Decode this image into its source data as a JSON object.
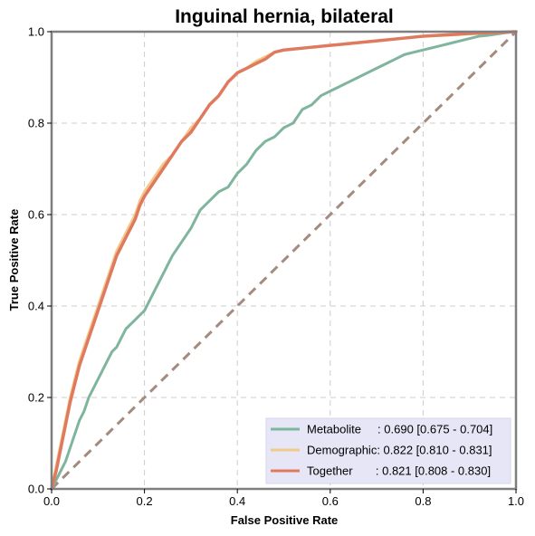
{
  "chart_data": {
    "type": "line",
    "title": "Inguinal hernia, bilateral",
    "xlabel": "False Positive Rate",
    "ylabel": "True Positive Rate",
    "xlim": [
      0,
      1
    ],
    "ylim": [
      0,
      1
    ],
    "x_ticks": [
      "0.0",
      "0.2",
      "0.4",
      "0.6",
      "0.8",
      "1.0"
    ],
    "y_ticks": [
      "0.0",
      "0.2",
      "0.4",
      "0.6",
      "0.8",
      "1.0"
    ],
    "grid": true,
    "legend_position": "bottom-right",
    "chance_line": {
      "x": [
        0,
        1
      ],
      "y": [
        0,
        1
      ],
      "color": "#a38b7d"
    },
    "series": [
      {
        "name": "Metabolite",
        "legend_label": "Metabolite     : 0.690 [0.675 - 0.704]",
        "color": "#7fb59c",
        "x": [
          0,
          0.01,
          0.02,
          0.03,
          0.04,
          0.05,
          0.06,
          0.07,
          0.08,
          0.09,
          0.1,
          0.11,
          0.12,
          0.13,
          0.14,
          0.15,
          0.16,
          0.17,
          0.18,
          0.19,
          0.2,
          0.22,
          0.24,
          0.26,
          0.28,
          0.3,
          0.32,
          0.34,
          0.36,
          0.38,
          0.4,
          0.42,
          0.44,
          0.46,
          0.48,
          0.5,
          0.52,
          0.54,
          0.56,
          0.58,
          0.6,
          0.62,
          0.64,
          0.66,
          0.68,
          0.7,
          0.72,
          0.74,
          0.76,
          0.78,
          0.8,
          0.82,
          0.84,
          0.86,
          0.88,
          0.9,
          0.92,
          0.94,
          0.96,
          0.98,
          1.0
        ],
        "y": [
          0,
          0.02,
          0.04,
          0.06,
          0.09,
          0.12,
          0.15,
          0.17,
          0.2,
          0.22,
          0.24,
          0.26,
          0.28,
          0.3,
          0.31,
          0.33,
          0.35,
          0.36,
          0.37,
          0.38,
          0.39,
          0.43,
          0.47,
          0.51,
          0.54,
          0.57,
          0.61,
          0.63,
          0.65,
          0.66,
          0.69,
          0.71,
          0.74,
          0.76,
          0.77,
          0.79,
          0.8,
          0.83,
          0.84,
          0.86,
          0.87,
          0.88,
          0.89,
          0.9,
          0.91,
          0.92,
          0.93,
          0.94,
          0.95,
          0.955,
          0.96,
          0.965,
          0.97,
          0.975,
          0.98,
          0.985,
          0.99,
          0.992,
          0.995,
          0.998,
          1.0
        ]
      },
      {
        "name": "Demographic",
        "legend_label": "Demographic: 0.822 [0.810 - 0.831]",
        "color": "#f3c98b",
        "x": [
          0,
          0.01,
          0.02,
          0.03,
          0.04,
          0.05,
          0.06,
          0.07,
          0.08,
          0.09,
          0.1,
          0.11,
          0.12,
          0.13,
          0.14,
          0.15,
          0.16,
          0.17,
          0.18,
          0.19,
          0.2,
          0.22,
          0.24,
          0.26,
          0.28,
          0.3,
          0.32,
          0.34,
          0.36,
          0.38,
          0.4,
          0.42,
          0.44,
          0.46,
          0.48,
          0.5,
          0.55,
          0.6,
          0.65,
          0.7,
          0.75,
          0.8,
          0.85,
          0.9,
          0.95,
          1.0
        ],
        "y": [
          0,
          0.05,
          0.1,
          0.15,
          0.2,
          0.24,
          0.28,
          0.31,
          0.34,
          0.37,
          0.4,
          0.43,
          0.46,
          0.49,
          0.52,
          0.54,
          0.56,
          0.58,
          0.6,
          0.63,
          0.65,
          0.68,
          0.71,
          0.73,
          0.76,
          0.79,
          0.81,
          0.84,
          0.86,
          0.89,
          0.91,
          0.92,
          0.935,
          0.945,
          0.955,
          0.96,
          0.965,
          0.97,
          0.975,
          0.98,
          0.985,
          0.99,
          0.992,
          0.995,
          0.998,
          1.0
        ]
      },
      {
        "name": "Together",
        "legend_label": "Together       : 0.821 [0.808 - 0.830]",
        "color": "#e07a5f",
        "x": [
          0,
          0.01,
          0.02,
          0.03,
          0.04,
          0.05,
          0.06,
          0.07,
          0.08,
          0.09,
          0.1,
          0.11,
          0.12,
          0.13,
          0.14,
          0.15,
          0.16,
          0.17,
          0.18,
          0.19,
          0.2,
          0.22,
          0.24,
          0.26,
          0.28,
          0.3,
          0.32,
          0.34,
          0.36,
          0.38,
          0.4,
          0.42,
          0.44,
          0.46,
          0.48,
          0.5,
          0.55,
          0.6,
          0.65,
          0.7,
          0.75,
          0.8,
          0.85,
          0.9,
          0.95,
          1.0
        ],
        "y": [
          0,
          0.04,
          0.09,
          0.14,
          0.19,
          0.23,
          0.27,
          0.3,
          0.33,
          0.36,
          0.39,
          0.42,
          0.45,
          0.48,
          0.51,
          0.53,
          0.55,
          0.57,
          0.59,
          0.62,
          0.64,
          0.67,
          0.7,
          0.73,
          0.76,
          0.78,
          0.81,
          0.84,
          0.86,
          0.89,
          0.91,
          0.92,
          0.93,
          0.94,
          0.955,
          0.96,
          0.965,
          0.97,
          0.975,
          0.98,
          0.985,
          0.99,
          0.993,
          0.996,
          0.998,
          1.0
        ]
      }
    ]
  }
}
